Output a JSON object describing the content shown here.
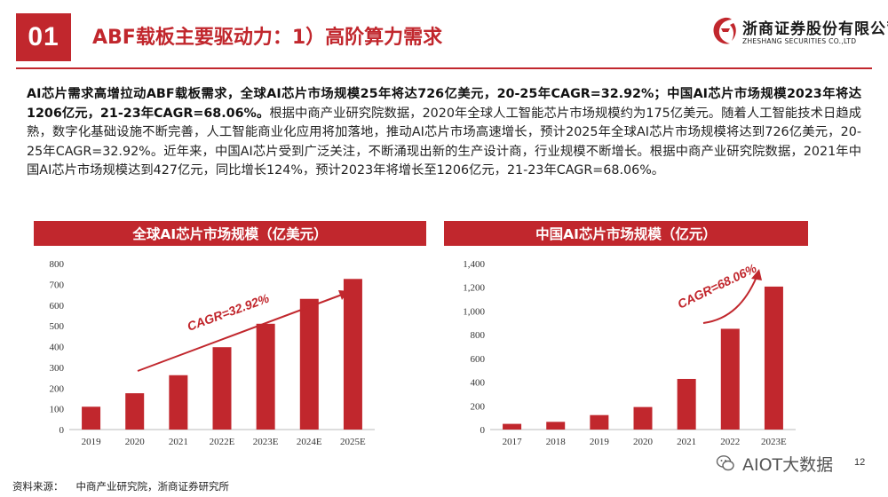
{
  "header": {
    "section_number": "01",
    "title": "ABF载板主要驱动力：1）高阶算力需求",
    "logo_cn": "浙商证券股份有限公司",
    "logo_en": "ZHESHANG SECURITIES CO.,LTD"
  },
  "paragraph": {
    "bold": "AI芯片需求高增拉动ABF载板需求，全球AI芯片市场规模25年将达726亿美元，20-25年CAGR=32.92%；中国AI芯片市场规模2023年将达1206亿元，21-23年CAGR=68.06%。",
    "body": "根据中商产业研究院数据，2020年全球人工智能芯片市场规模约为175亿美元。随着人工智能技术日趋成熟，数字化基础设施不断完善，人工智能商业化应用将加落地，推动AI芯片市场高速增长，预计2025年全球AI芯片市场规模将达到726亿美元，20-25年CAGR=32.92%。近年来，中国AI芯片受到广泛关注，不断涌现出新的生产设计商，行业规模不断增长。根据中商产业研究院数据，2021年中国AI芯片市场规模达到427亿元，同比增长124%，预计2023年将增长至1206亿元，21-23年CAGR=68.06%。"
  },
  "chart_data": [
    {
      "type": "bar",
      "title": "全球AI芯片市场规模（亿美元）",
      "categories": [
        "2019",
        "2020",
        "2021",
        "2022E",
        "2023E",
        "2024E",
        "2025E"
      ],
      "values": [
        110,
        175,
        262,
        397,
        510,
        630,
        726
      ],
      "ylim": [
        0,
        800
      ],
      "yticks": [
        "0",
        "100",
        "200",
        "300",
        "400",
        "500",
        "600",
        "700",
        "800"
      ],
      "annotation": "CAGR=32.92%",
      "color": "#c1272d"
    },
    {
      "type": "bar",
      "title": "中国AI芯片市场规模（亿元）",
      "categories": [
        "2017",
        "2018",
        "2019",
        "2020",
        "2021",
        "2022",
        "2023E"
      ],
      "values": [
        48,
        65,
        122,
        190,
        427,
        850,
        1206
      ],
      "ylim": [
        0,
        1400
      ],
      "yticks": [
        "0",
        "200",
        "400",
        "600",
        "800",
        "1,000",
        "1,200",
        "1,400"
      ],
      "annotation": "CAGR=68.06%",
      "color": "#c1272d"
    }
  ],
  "footer": {
    "source_label": "资料来源：",
    "source_text": "中商产业研究院，浙商证券研究所",
    "watermark": "AIOT大数据",
    "page_number": "12"
  }
}
